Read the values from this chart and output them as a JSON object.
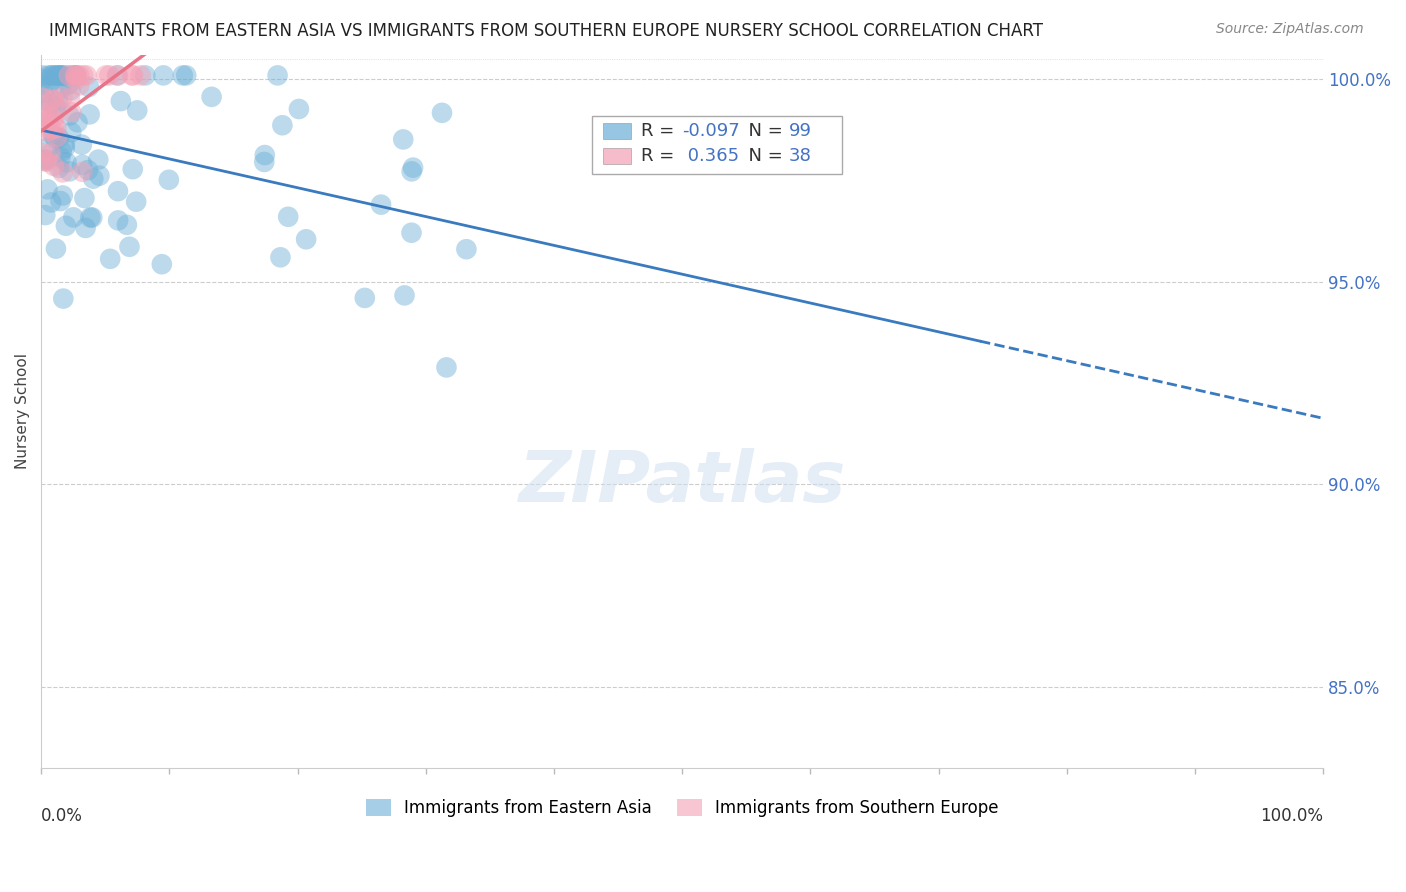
{
  "title": "IMMIGRANTS FROM EASTERN ASIA VS IMMIGRANTS FROM SOUTHERN EUROPE NURSERY SCHOOL CORRELATION CHART",
  "source": "Source: ZipAtlas.com",
  "ylabel": "Nursery School",
  "blue_color": "#6baed6",
  "pink_color": "#f4a0b5",
  "blue_line_color": "#3a7abf",
  "pink_line_color": "#e8748a",
  "R_blue": -0.097,
  "N_blue": 99,
  "R_pink": 0.365,
  "N_pink": 38,
  "legend_blue": "Immigrants from Eastern Asia",
  "legend_pink": "Immigrants from Southern Europe",
  "ylim_min": 0.83,
  "ylim_max": 1.006,
  "xlim_min": 0.0,
  "xlim_max": 1.0,
  "ytick_vals": [
    0.85,
    0.9,
    0.95,
    1.0
  ],
  "ytick_labels": [
    "85.0%",
    "90.0%",
    "95.0%",
    "100.0%"
  ],
  "xtick_vals": [
    0.0,
    0.1,
    0.2,
    0.3,
    0.4,
    0.5,
    0.6,
    0.7,
    0.8,
    0.9,
    1.0
  ]
}
